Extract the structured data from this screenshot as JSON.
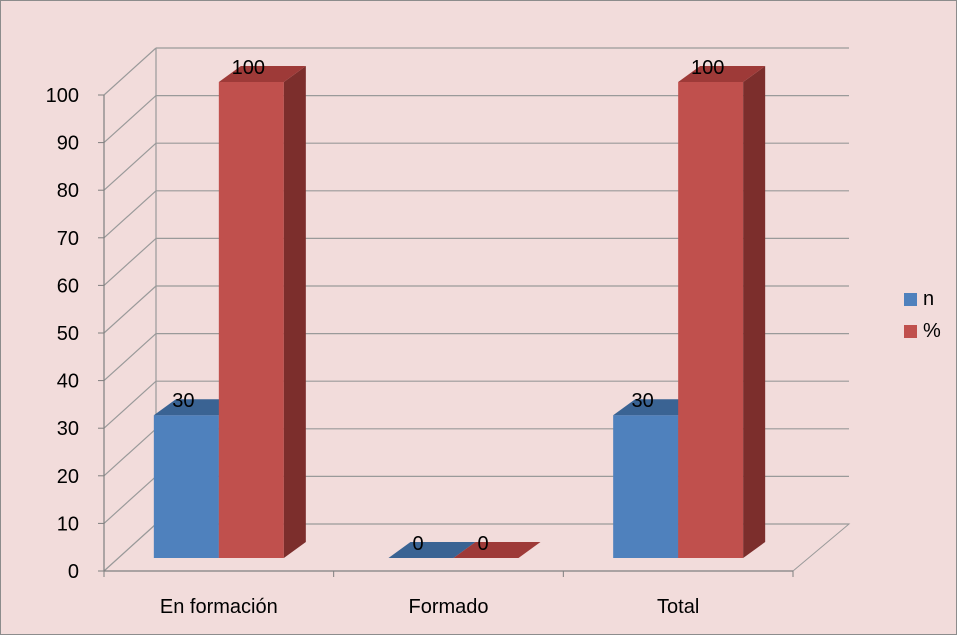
{
  "colors": {
    "background": "#f2dcdb",
    "n_front": "#4f81bd",
    "n_top": "#3a6393",
    "pct_front": "#c0504d",
    "pct_side": "#7c2e2c",
    "pct_top": "#9e3a38",
    "grid": "#9a9a9a",
    "axis": "#7f7f7f"
  },
  "chart_data": {
    "type": "bar",
    "style": "3d-clustered-column",
    "categories": [
      "En formación",
      "Formado",
      "Total"
    ],
    "series": [
      {
        "name": "n",
        "values": [
          30,
          0,
          30
        ]
      },
      {
        "name": "%",
        "values": [
          100,
          0,
          100
        ]
      }
    ],
    "data_labels": [
      [
        "30",
        "0",
        "30"
      ],
      [
        "100",
        "0",
        "100"
      ]
    ],
    "yticks": [
      "0",
      "10",
      "20",
      "30",
      "40",
      "50",
      "60",
      "70",
      "80",
      "90",
      "100"
    ],
    "ylim": [
      0,
      100
    ],
    "grid": true,
    "legend_position": "right"
  },
  "legend": [
    {
      "label": "n",
      "color": "#4f81bd"
    },
    {
      "label": "%",
      "color": "#c0504d"
    }
  ]
}
